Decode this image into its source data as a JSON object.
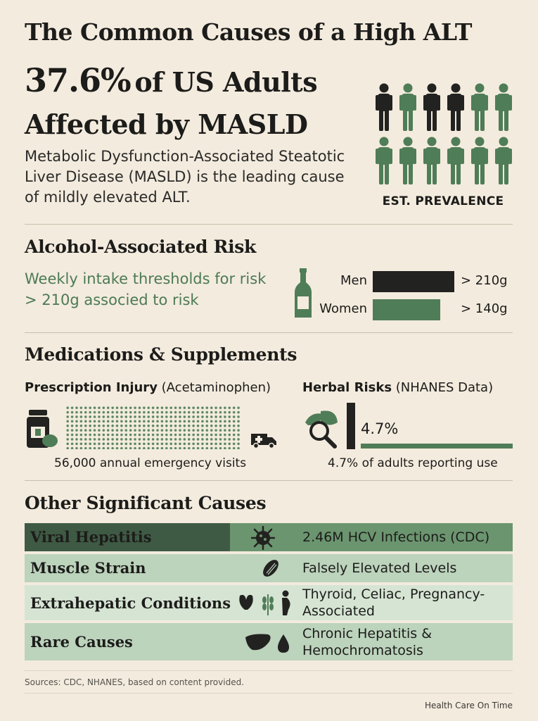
{
  "header": {
    "title": "The Common Causes of a High ALT",
    "headline_pct": "37.6%",
    "headline_rest": "of US Adults Affected by MASLD",
    "description": "Metabolic Dysfunction-Associated Steatotic Liver Disease (MASLD) is the leading cause of mildly elevated ALT.",
    "prevalence_label": "EST. PREVALENCE",
    "prevalence_icons": 12
  },
  "alcohol": {
    "heading": "Alcohol-Associated Risk",
    "text": "Weekly intake thresholds for risk  > 210g  associed  to risk",
    "rows": [
      {
        "label": "Men",
        "value": "> 210g",
        "color": "#222220"
      },
      {
        "label": "Women",
        "value": "> 140g",
        "color": "#4f7d57"
      }
    ]
  },
  "medications": {
    "heading": "Medications & Supplements",
    "prescription_bold": "Prescription Injury",
    "prescription_note": "(Acetaminophen)",
    "prescription_caption": "56,000 annual emergency visits",
    "herbal_bold": "Herbal Risks",
    "herbal_note": "(NHANES Data)",
    "herbal_value": "4.7%",
    "herbal_caption": "4.7% of adults reporting use"
  },
  "other": {
    "heading": "Other Significant Causes",
    "rows": [
      {
        "label": "Viral Hepatitis",
        "value": "2.46M HCV Infections (CDC)",
        "icon": "virus-icon"
      },
      {
        "label": "Muscle Strain",
        "value": "Falsely Elevated Levels",
        "icon": "muscle-icon"
      },
      {
        "label": "Extrahepatic Conditions",
        "value": "Thyroid, Celiac, Pregnancy-Associated",
        "icon": "thyroid-wheat-pregnancy-icons"
      },
      {
        "label": "Rare Causes",
        "value": "Chronic Hepatitis & Hemochromatosis",
        "icon": "liver-drop-icons"
      }
    ]
  },
  "footer": {
    "sources": "Sources: CDC, NHANES, based on content provided.",
    "brand": "Health Care On Time"
  },
  "colors": {
    "background": "#f3ebde",
    "dark": "#222220",
    "green": "#4f7d57",
    "pale_green": "#c9dcc9"
  }
}
